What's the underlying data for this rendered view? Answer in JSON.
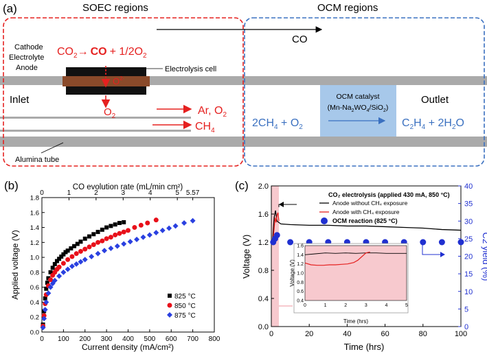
{
  "panel_a": {
    "label": "(a)",
    "soec_title": "SOEC regions",
    "ocm_title": "OCM regions",
    "co_arrow_label": "CO",
    "reaction_prefix": "CO",
    "reaction_sub": "2",
    "reaction_arrow": "→",
    "reaction_co": "CO",
    "reaction_rest": "+ 1/2O",
    "reaction_sub2": "2",
    "cathode": "Cathode",
    "electrolyte": "Electrolyte",
    "anode": "Anode",
    "electrolysis_cell": "Electrolysis cell",
    "oxide_ion": "O",
    "oxide_charge": "2-",
    "o2_main": "O",
    "o2_sub": "2",
    "inlet": "Inlet",
    "ar_o2": "Ar, O",
    "ar_o2_sub": "2",
    "ch4_main": "CH",
    "ch4_sub": "4",
    "alumina_tube": "Alumina tube",
    "ocm_catalyst_line1": "OCM catalyst",
    "ocm_catalyst_line2": "(Mn-Na",
    "ocm_catalyst_sub1": "2",
    "ocm_catalyst_mid": "WO",
    "ocm_catalyst_sub2": "4",
    "ocm_catalyst_mid2": "/SiO",
    "ocm_catalyst_sub3": "2",
    "ocm_catalyst_end": ")",
    "outlet": "Outlet",
    "react_left_a": "2CH",
    "react_left_sub": "4",
    "react_left_b": " + O",
    "react_left_sub2": "2",
    "react_right_a": "C",
    "react_right_sub1": "2",
    "react_right_b": "H",
    "react_right_sub2": "4",
    "react_right_c": " + 2H",
    "react_right_sub3": "2",
    "react_right_d": "O",
    "colors": {
      "red": "#e5201f",
      "blue": "#3a70c0",
      "tube": "#aaaaaa",
      "catalyst": "#a7c8ea",
      "cell": "#8a4a2a"
    }
  },
  "panel_b": {
    "label": "(b)",
    "chart_data": {
      "type": "scatter",
      "xlabel": "Current density (mA/cm²)",
      "ylabel": "Applied voltage (V)",
      "top_xlabel": "CO evolution rate (mL/min cm²)",
      "xlim": [
        0,
        800
      ],
      "ylim": [
        0,
        1.8
      ],
      "xticks": [
        "0",
        "100",
        "200",
        "300",
        "400",
        "500",
        "600",
        "700",
        "800"
      ],
      "yticks": [
        "0.0",
        "0.2",
        "0.4",
        "0.6",
        "0.8",
        "1.0",
        "1.2",
        "1.4",
        "1.6",
        "1.8"
      ],
      "top_ticks": [
        "0",
        "1",
        "2",
        "3",
        "4",
        "5",
        "5.57"
      ],
      "top_max": 5.57,
      "series": [
        {
          "name": "825 °C",
          "color": "#000000",
          "marker": "square",
          "x": [
            5,
            10,
            15,
            20,
            25,
            30,
            40,
            50,
            60,
            70,
            80,
            90,
            100,
            110,
            120,
            135,
            150,
            165,
            180,
            200,
            220,
            240,
            260,
            280,
            300,
            320,
            340,
            360,
            380
          ],
          "y": [
            0.1,
            0.28,
            0.45,
            0.58,
            0.66,
            0.72,
            0.8,
            0.86,
            0.91,
            0.95,
            0.98,
            1.01,
            1.04,
            1.07,
            1.09,
            1.12,
            1.15,
            1.18,
            1.21,
            1.25,
            1.28,
            1.31,
            1.34,
            1.37,
            1.4,
            1.42,
            1.44,
            1.46,
            1.47
          ]
        },
        {
          "name": "850 °C",
          "color": "#e8101a",
          "marker": "circle",
          "x": [
            5,
            10,
            15,
            20,
            30,
            40,
            50,
            60,
            70,
            80,
            100,
            120,
            140,
            160,
            180,
            200,
            220,
            240,
            260,
            280,
            300,
            320,
            340,
            360,
            380,
            400,
            430,
            460,
            490,
            530
          ],
          "y": [
            0.08,
            0.22,
            0.38,
            0.5,
            0.62,
            0.7,
            0.76,
            0.8,
            0.84,
            0.87,
            0.92,
            0.97,
            1.01,
            1.05,
            1.08,
            1.11,
            1.14,
            1.17,
            1.2,
            1.22,
            1.25,
            1.27,
            1.3,
            1.32,
            1.34,
            1.36,
            1.4,
            1.43,
            1.46,
            1.5
          ]
        },
        {
          "name": "875 °C",
          "color": "#2a40e0",
          "marker": "diamond",
          "x": [
            5,
            10,
            15,
            20,
            30,
            40,
            50,
            60,
            80,
            100,
            120,
            140,
            160,
            180,
            200,
            230,
            260,
            290,
            320,
            350,
            380,
            410,
            440,
            470,
            500,
            530,
            560,
            590,
            620,
            660,
            700
          ],
          "y": [
            0.06,
            0.18,
            0.3,
            0.4,
            0.52,
            0.6,
            0.65,
            0.69,
            0.75,
            0.8,
            0.84,
            0.88,
            0.91,
            0.94,
            0.97,
            1.01,
            1.05,
            1.09,
            1.12,
            1.15,
            1.18,
            1.21,
            1.24,
            1.27,
            1.3,
            1.33,
            1.36,
            1.39,
            1.42,
            1.46,
            1.49
          ]
        }
      ],
      "legend": [
        "825 °C",
        "850 °C",
        "875 °C"
      ]
    }
  },
  "panel_c": {
    "label": "(c)",
    "chart_data": {
      "type": "line",
      "xlabel": "Time (hrs)",
      "ylabel_left": "Voltage (V)",
      "ylabel_right": "C2 yield (%)",
      "xlim": [
        0,
        100
      ],
      "ylim_left": [
        0,
        2.0
      ],
      "ylim_right": [
        0,
        40
      ],
      "xticks": [
        "0",
        "20",
        "40",
        "60",
        "80",
        "100"
      ],
      "yticks_left": [
        "0.0",
        "0.4",
        "0.8",
        "1.2",
        "1.6",
        "2.0"
      ],
      "yticks_right": [
        "0",
        "5",
        "10",
        "15",
        "20",
        "25",
        "30",
        "35",
        "40"
      ],
      "legend_title": "CO₂ electrolysis (applied 430 mA, 850 °C)",
      "legend_black": "Anode without CH₄ exposure",
      "legend_red": "Anode with CH₄ exposure",
      "legend_ocm": "OCM reaction (825 °C)",
      "voltage_black": {
        "t": [
          0.3,
          0.8,
          1.5,
          2.2,
          3,
          5,
          10,
          20,
          30,
          40,
          50,
          60,
          70,
          80,
          90,
          100
        ],
        "v": [
          1.2,
          1.28,
          1.55,
          1.65,
          1.5,
          1.46,
          1.45,
          1.44,
          1.44,
          1.43,
          1.43,
          1.42,
          1.41,
          1.4,
          1.38,
          1.37
        ]
      },
      "voltage_red": {
        "t": [
          0.5,
          1,
          1.5,
          2,
          2.5,
          3,
          3.5,
          4
        ],
        "v": [
          1.2,
          1.25,
          1.4,
          1.55,
          1.48,
          1.58,
          1.62,
          1.5
        ]
      },
      "ocm_yield": {
        "t": [
          1,
          2,
          3,
          10,
          20,
          30,
          40,
          50,
          60,
          70,
          80,
          90,
          100
        ],
        "y": [
          24,
          25,
          26,
          24,
          24,
          24,
          24,
          24,
          24,
          24,
          24,
          24,
          24
        ]
      },
      "shaded_range": [
        0,
        5
      ],
      "inset": {
        "xlabel": "Time (hrs)",
        "ylabel": "Voltage (V)",
        "xticks": [
          "0",
          "1",
          "2",
          "3",
          "4",
          "5"
        ],
        "yticks": [
          "0.4",
          "0.6",
          "0.8",
          "1.0",
          "1.2",
          "1.4",
          "1.6"
        ],
        "black": {
          "t": [
            0,
            0.5,
            1,
            1.5,
            2,
            2.5,
            3,
            3.5,
            4,
            4.5,
            5
          ],
          "v": [
            1.4,
            1.42,
            1.44,
            1.43,
            1.44,
            1.43,
            1.44,
            1.44,
            1.43,
            1.43,
            1.43
          ]
        },
        "red": {
          "t": [
            0,
            0.3,
            0.6,
            0.9,
            1.2,
            1.5,
            1.8,
            2.1,
            2.4,
            2.6,
            2.8,
            3.0,
            3.2
          ],
          "v": [
            1.22,
            1.18,
            1.17,
            1.17,
            1.18,
            1.18,
            1.19,
            1.2,
            1.23,
            1.28,
            1.36,
            1.44,
            1.46
          ]
        }
      }
    }
  }
}
